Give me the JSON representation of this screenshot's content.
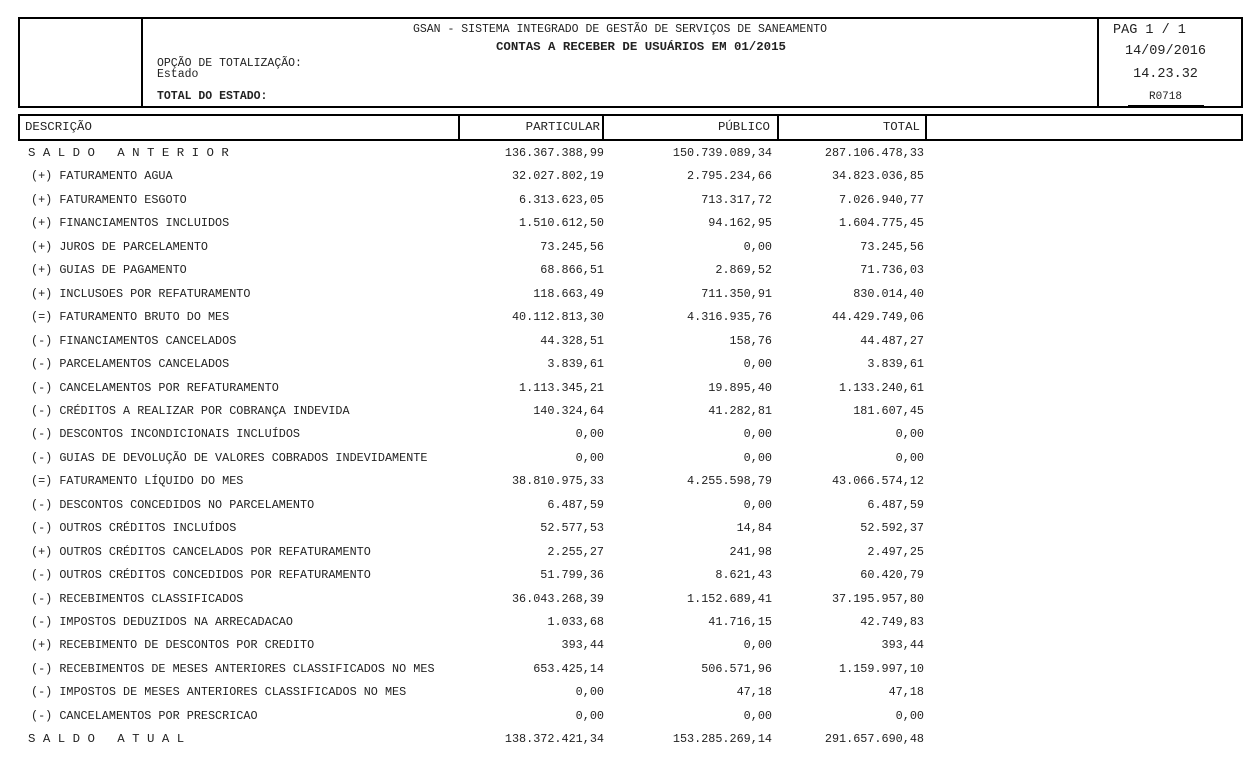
{
  "header": {
    "system": "GSAN - SISTEMA INTEGRADO DE GESTÃO DE SERVIÇOS DE SANEAMENTO",
    "title": "CONTAS A RECEBER DE USUÁRIOS EM 01/2015",
    "option_label": "OPÇÃO DE TOTALIZAÇÃO:",
    "option_value": "Estado",
    "total_label": "TOTAL DO ESTADO:",
    "page": "PAG 1 / 1",
    "date": "14/09/2016",
    "time": "14.23.32",
    "code": "R0718"
  },
  "table": {
    "columns": [
      "DESCRIÇÃO",
      "PARTICULAR",
      "PÚBLICO",
      "TOTAL"
    ],
    "rows": [
      [
        "S A L D O   A N T E R I O R",
        "136.367.388,99",
        "150.739.089,34",
        "287.106.478,33"
      ],
      [
        "(+) FATURAMENTO AGUA",
        "32.027.802,19",
        "2.795.234,66",
        "34.823.036,85"
      ],
      [
        "(+) FATURAMENTO ESGOTO",
        "6.313.623,05",
        "713.317,72",
        "7.026.940,77"
      ],
      [
        "(+) FINANCIAMENTOS INCLUIDOS",
        "1.510.612,50",
        "94.162,95",
        "1.604.775,45"
      ],
      [
        "(+) JUROS DE PARCELAMENTO",
        "73.245,56",
        "0,00",
        "73.245,56"
      ],
      [
        "(+) GUIAS DE PAGAMENTO",
        "68.866,51",
        "2.869,52",
        "71.736,03"
      ],
      [
        "(+) INCLUSOES POR REFATURAMENTO",
        "118.663,49",
        "711.350,91",
        "830.014,40"
      ],
      [
        "(=) FATURAMENTO BRUTO DO MES",
        "40.112.813,30",
        "4.316.935,76",
        "44.429.749,06"
      ],
      [
        "(-) FINANCIAMENTOS CANCELADOS",
        "44.328,51",
        "158,76",
        "44.487,27"
      ],
      [
        "(-) PARCELAMENTOS CANCELADOS",
        "3.839,61",
        "0,00",
        "3.839,61"
      ],
      [
        "(-) CANCELAMENTOS POR REFATURAMENTO",
        "1.113.345,21",
        "19.895,40",
        "1.133.240,61"
      ],
      [
        "(-) CRÉDITOS A REALIZAR POR COBRANÇA INDEVIDA",
        "140.324,64",
        "41.282,81",
        "181.607,45"
      ],
      [
        "(-) DESCONTOS INCONDICIONAIS INCLUÍDOS",
        "0,00",
        "0,00",
        "0,00"
      ],
      [
        "(-) GUIAS DE DEVOLUÇÃO DE VALORES COBRADOS INDEVIDAMENTE",
        "0,00",
        "0,00",
        "0,00"
      ],
      [
        "(=) FATURAMENTO LÍQUIDO DO MES",
        "38.810.975,33",
        "4.255.598,79",
        "43.066.574,12"
      ],
      [
        "(-) DESCONTOS CONCEDIDOS NO PARCELAMENTO",
        "6.487,59",
        "0,00",
        "6.487,59"
      ],
      [
        "(-) OUTROS CRÉDITOS INCLUÍDOS",
        "52.577,53",
        "14,84",
        "52.592,37"
      ],
      [
        "(+) OUTROS CRÉDITOS CANCELADOS POR REFATURAMENTO",
        "2.255,27",
        "241,98",
        "2.497,25"
      ],
      [
        "(-) OUTROS CRÉDITOS CONCEDIDOS POR REFATURAMENTO",
        "51.799,36",
        "8.621,43",
        "60.420,79"
      ],
      [
        "(-) RECEBIMENTOS CLASSIFICADOS",
        "36.043.268,39",
        "1.152.689,41",
        "37.195.957,80"
      ],
      [
        "(-) IMPOSTOS DEDUZIDOS NA ARRECADACAO",
        "1.033,68",
        "41.716,15",
        "42.749,83"
      ],
      [
        "(+) RECEBIMENTO DE DESCONTOS POR CREDITO",
        "393,44",
        "0,00",
        "393,44"
      ],
      [
        "(-) RECEBIMENTOS DE MESES ANTERIORES CLASSIFICADOS NO MES",
        "653.425,14",
        "506.571,96",
        "1.159.997,10"
      ],
      [
        "(-) IMPOSTOS DE MESES ANTERIORES CLASSIFICADOS NO MES",
        "0,00",
        "47,18",
        "47,18"
      ],
      [
        "(-) CANCELAMENTOS POR PRESCRICAO",
        "0,00",
        "0,00",
        "0,00"
      ],
      [
        "S A L D O   A T U A L",
        "138.372.421,34",
        "153.285.269,14",
        "291.657.690,48"
      ]
    ]
  }
}
